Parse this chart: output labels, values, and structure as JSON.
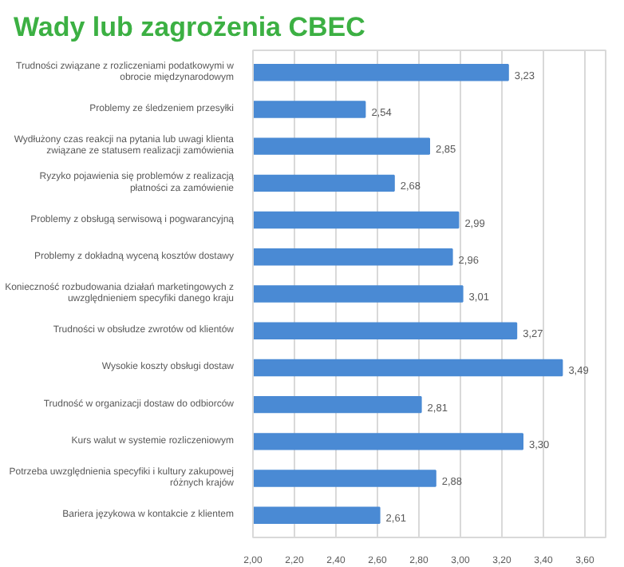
{
  "chart_data": {
    "type": "bar",
    "orientation": "horizontal",
    "title": "Wady lub zagrożenia CBEC",
    "categories": [
      "Trudności związane z rozliczeniami podatkowymi w obrocie międzynarodowym",
      "Problemy ze śledzeniem przesyłki",
      "Wydłużony czas reakcji na pytania lub uwagi klienta związane ze statusem realizacji zamówienia",
      "Ryzyko pojawienia się problemów z realizacją płatności za zamówienie",
      "Problemy z obsługą serwisową i pogwarancyjną",
      "Problemy z dokładną wyceną kosztów dostawy",
      "Konieczność rozbudowania działań marketingowych z uwzględnieniem specyfiki danego kraju",
      "Trudności w obsłudze zwrotów od klientów",
      "Wysokie koszty obsługi dostaw",
      "Trudność w organizacji dostaw do odbiorców",
      "Kurs walut w systemie rozliczeniowym",
      "Potrzeba uwzględnienia specyfiki i kultury zakupowej różnych krajów",
      "Bariera językowa w kontakcie z klientem"
    ],
    "values": [
      3.23,
      2.54,
      2.85,
      2.68,
      2.99,
      2.96,
      3.01,
      3.27,
      3.49,
      2.81,
      3.3,
      2.88,
      2.61
    ],
    "value_labels": [
      "3,23",
      "2,54",
      "2,85",
      "2,68",
      "2,99",
      "2,96",
      "3,01",
      "3,27",
      "3,49",
      "2,81",
      "3,30",
      "2,88",
      "2,61"
    ],
    "color": "#4a8ad4",
    "xlim": [
      2.0,
      3.7
    ],
    "xticks": [
      {
        "value": 2.0,
        "label": "2,00"
      },
      {
        "value": 2.2,
        "label": "2,20"
      },
      {
        "value": 2.4,
        "label": "2,40"
      },
      {
        "value": 2.6,
        "label": "2,60"
      },
      {
        "value": 2.8,
        "label": "2,80"
      },
      {
        "value": 3.0,
        "label": "3,00"
      },
      {
        "value": 3.2,
        "label": "3,20"
      },
      {
        "value": 3.4,
        "label": "3,40"
      },
      {
        "value": 3.6,
        "label": "3,60"
      }
    ],
    "grid": "x"
  }
}
